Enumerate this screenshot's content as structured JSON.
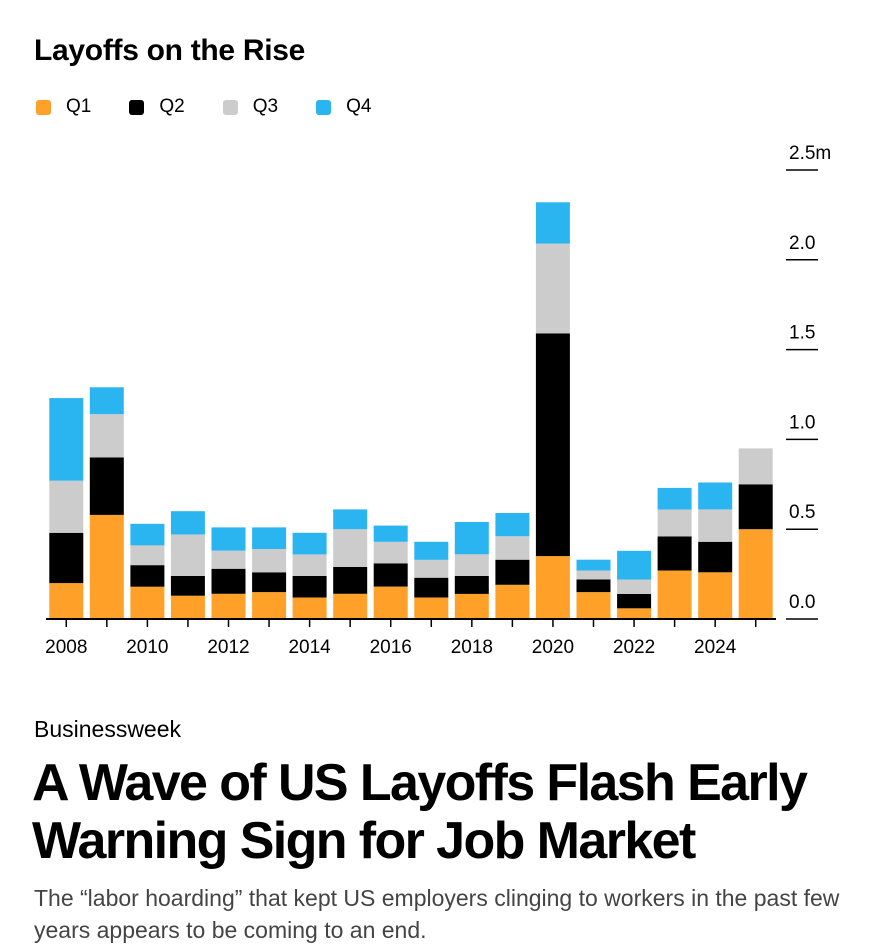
{
  "chart_data": {
    "type": "bar",
    "stacked": true,
    "title": "Layoffs on the Rise",
    "xlabel": "",
    "ylabel": "",
    "ylim": [
      0,
      2.5
    ],
    "y_ticks": [
      0.0,
      0.5,
      1.0,
      1.5,
      2.0,
      2.5
    ],
    "y_tick_labels": [
      "0.0",
      "0.5",
      "1.0",
      "1.5",
      "2.0",
      "2.5m"
    ],
    "x_tick_labels": [
      "2008",
      "2010",
      "2012",
      "2014",
      "2016",
      "2018",
      "2020",
      "2022",
      "2024"
    ],
    "categories": [
      2008,
      2009,
      2010,
      2011,
      2012,
      2013,
      2014,
      2015,
      2016,
      2017,
      2018,
      2019,
      2020,
      2021,
      2022,
      2023,
      2024,
      2025
    ],
    "legend_position": "top-left",
    "series": [
      {
        "name": "Q1",
        "color": "#FFA028",
        "values": [
          0.2,
          0.58,
          0.18,
          0.13,
          0.14,
          0.15,
          0.12,
          0.14,
          0.18,
          0.12,
          0.14,
          0.19,
          0.35,
          0.15,
          0.06,
          0.27,
          0.26,
          0.5
        ]
      },
      {
        "name": "Q2",
        "color": "#000000",
        "values": [
          0.28,
          0.32,
          0.12,
          0.11,
          0.14,
          0.11,
          0.12,
          0.15,
          0.13,
          0.11,
          0.1,
          0.14,
          1.24,
          0.07,
          0.08,
          0.19,
          0.17,
          0.25
        ]
      },
      {
        "name": "Q3",
        "color": "#CCCCCC",
        "values": [
          0.29,
          0.24,
          0.11,
          0.23,
          0.1,
          0.13,
          0.12,
          0.21,
          0.12,
          0.1,
          0.12,
          0.13,
          0.5,
          0.05,
          0.08,
          0.15,
          0.18,
          0.2
        ]
      },
      {
        "name": "Q4",
        "color": "#2AB4F0",
        "values": [
          0.46,
          0.15,
          0.12,
          0.13,
          0.13,
          0.12,
          0.12,
          0.11,
          0.09,
          0.1,
          0.18,
          0.13,
          0.23,
          0.06,
          0.16,
          0.12,
          0.15,
          0.0
        ]
      }
    ]
  },
  "section_label": "Businessweek",
  "headline": "A Wave of US Layoffs Flash Early Warning Sign for Job Market",
  "dek": "The “labor hoarding” that kept US employers clinging to workers in the past few years appears to be coming to an end."
}
